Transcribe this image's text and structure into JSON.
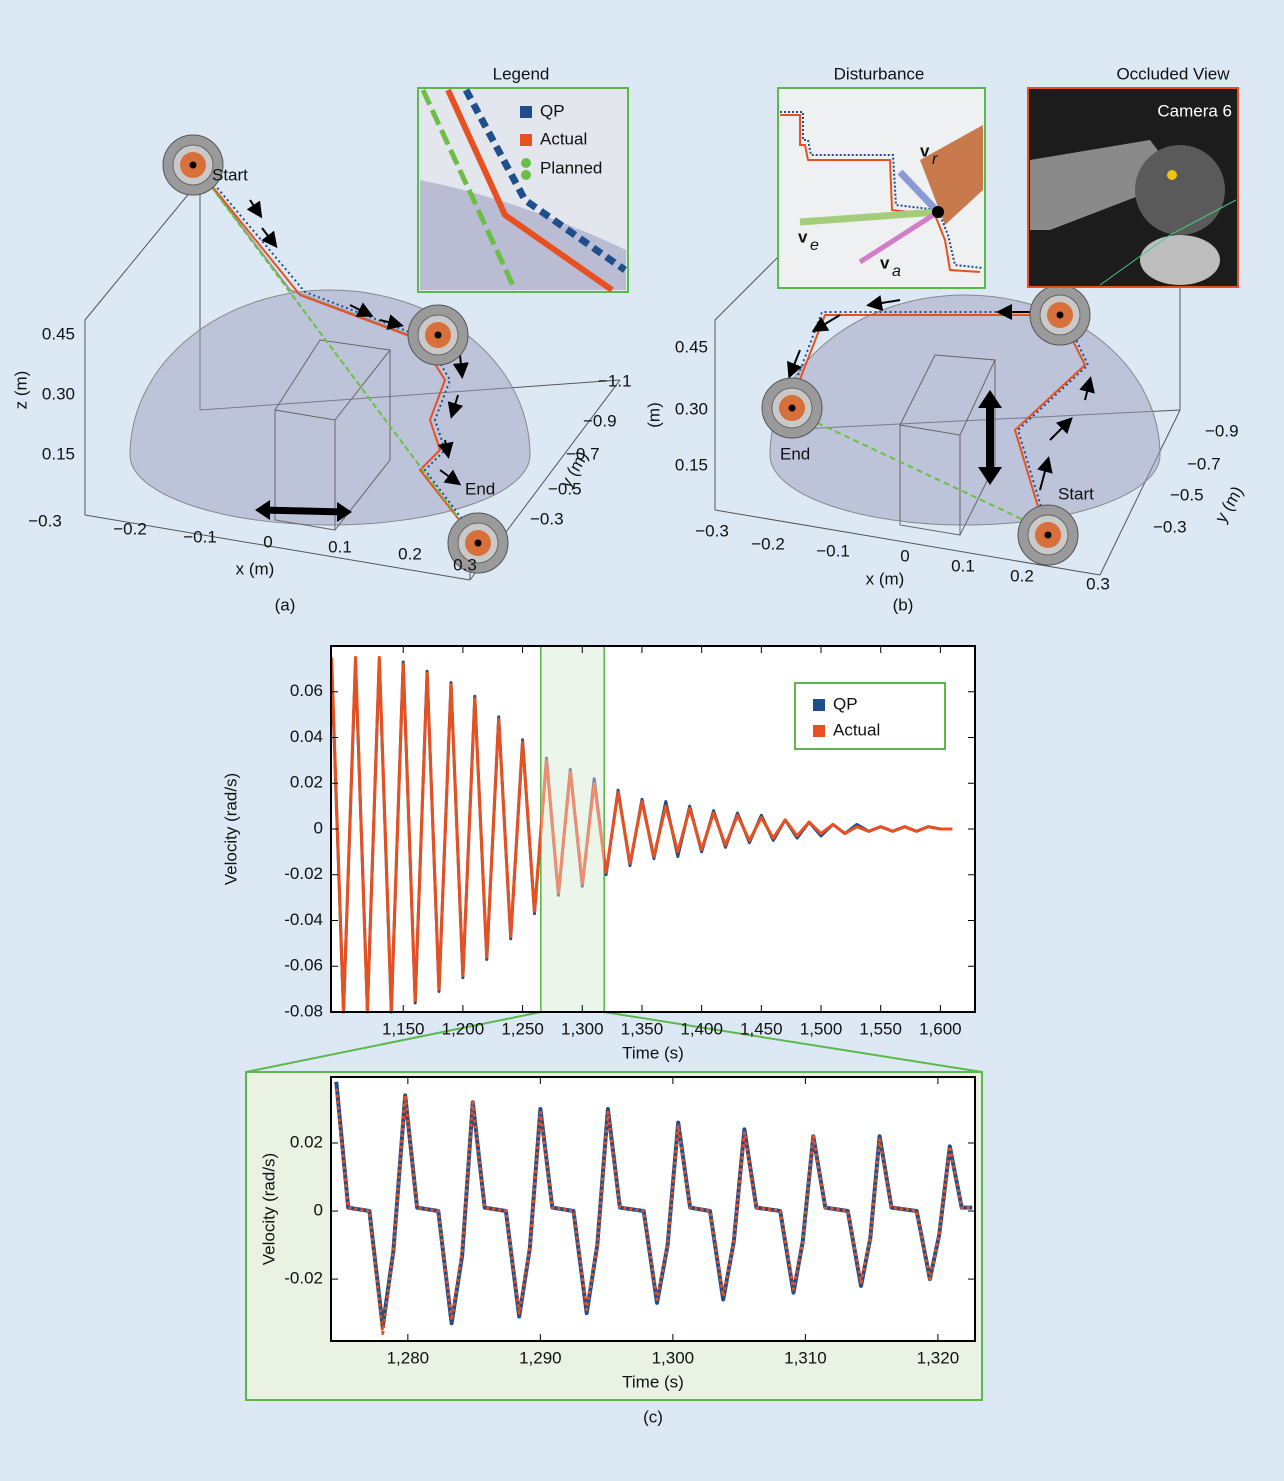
{
  "panel_a": {
    "legend_title": "Legend",
    "legend_items": [
      "QP",
      "Actual",
      "Planned"
    ],
    "start": "Start",
    "end": "End",
    "z_ticks": [
      "0.45",
      "0.30",
      "0.15"
    ],
    "z_label": "z (m)",
    "x_ticks": [
      "−0.3",
      "−0.2",
      "−0.1",
      "0",
      "0.1",
      "0.2",
      "0.3"
    ],
    "x_label": "x (m)",
    "y_ticks": [
      "−1.1",
      "−0.9",
      "−0.7",
      "−0.5",
      "−0.3"
    ],
    "y_label": "y (m)",
    "label": "(a)"
  },
  "panel_b": {
    "disturbance_title": "Disturbance",
    "vectors": [
      {
        "symbol": "v",
        "subscript": "r"
      },
      {
        "symbol": "v",
        "subscript": "e"
      },
      {
        "symbol": "v",
        "subscript": "a"
      }
    ],
    "occluded_title": "Occluded View",
    "camera": "Camera 6",
    "start": "Start",
    "end": "End",
    "z_ticks": [
      "0.45",
      "0.30",
      "0.15"
    ],
    "z_label": "(m)",
    "x_ticks": [
      "−0.3",
      "−0.2",
      "−0.1",
      "0",
      "0.1",
      "0.2",
      "0.3"
    ],
    "x_label": "x (m)",
    "y_ticks": [
      "−0.9",
      "−0.7",
      "−0.5",
      "−0.3"
    ],
    "y_label": "y (m)",
    "label": "(b)"
  },
  "panel_c": {
    "label": "(c)"
  },
  "chart_data": [
    {
      "type": "line",
      "xlabel": "Time (s)",
      "ylabel": "Velocity (rad/s)",
      "legend": "upper right",
      "x": [
        1090,
        1100,
        1110,
        1120,
        1130,
        1140,
        1150,
        1160,
        1170,
        1180,
        1190,
        1200,
        1210,
        1220,
        1230,
        1240,
        1250,
        1260,
        1270,
        1280,
        1290,
        1300,
        1310,
        1320,
        1330,
        1340,
        1350,
        1360,
        1370,
        1380,
        1390,
        1400,
        1410,
        1420,
        1430,
        1440,
        1450,
        1460,
        1470,
        1480,
        1490,
        1500,
        1510,
        1520,
        1530,
        1540,
        1550,
        1560,
        1570,
        1580,
        1590,
        1600,
        1610
      ],
      "series": [
        {
          "name": "QP",
          "color": "#1f4e8c",
          "values": [
            0.072,
            -0.08,
            0.073,
            -0.079,
            0.074,
            -0.08,
            0.073,
            -0.076,
            0.069,
            -0.071,
            0.064,
            -0.065,
            0.058,
            -0.057,
            0.049,
            -0.048,
            0.039,
            -0.037,
            0.031,
            -0.029,
            0.026,
            -0.025,
            0.022,
            -0.02,
            0.017,
            -0.016,
            0.013,
            -0.013,
            0.012,
            -0.012,
            0.01,
            -0.01,
            0.008,
            -0.008,
            0.007,
            -0.006,
            0.006,
            -0.005,
            0.004,
            -0.004,
            0.003,
            -0.003,
            0.002,
            -0.002,
            0.002,
            -0.001,
            0.001,
            -0.001,
            0.001,
            -0.001,
            0.001,
            0,
            0
          ]
        },
        {
          "name": "Actual",
          "color": "#e8501f",
          "values": [
            0.075,
            -0.08,
            0.075,
            -0.08,
            0.075,
            -0.079,
            0.072,
            -0.075,
            0.068,
            -0.07,
            0.063,
            -0.064,
            0.057,
            -0.056,
            0.048,
            -0.047,
            0.038,
            -0.036,
            0.03,
            -0.028,
            0.025,
            -0.024,
            0.02,
            -0.019,
            0.016,
            -0.015,
            0.012,
            -0.012,
            0.01,
            -0.01,
            0.009,
            -0.009,
            0.007,
            -0.007,
            0.006,
            -0.005,
            0.005,
            -0.004,
            0.004,
            -0.003,
            0.003,
            -0.002,
            0.002,
            -0.002,
            0.001,
            -0.001,
            0.001,
            -0.001,
            0.001,
            -0.001,
            0.001,
            0,
            0
          ]
        }
      ],
      "xlim": [
        1089.5,
        1629
      ],
      "ylim": [
        -0.08,
        0.08
      ],
      "xticks": [
        {
          "value": 1150,
          "label": "1,150"
        },
        {
          "value": 1200,
          "label": "1,200"
        },
        {
          "value": 1250,
          "label": "1,250"
        },
        {
          "value": 1300,
          "label": "1,300"
        },
        {
          "value": 1350,
          "label": "1,350"
        },
        {
          "value": 1400,
          "label": "1,400"
        },
        {
          "value": 1450,
          "label": "1,450"
        },
        {
          "value": 1500,
          "label": "1,500"
        },
        {
          "value": 1550,
          "label": "1,550"
        },
        {
          "value": 1600,
          "label": "1,600"
        }
      ],
      "yticks": [
        -0.08,
        -0.06,
        -0.04,
        -0.02,
        0,
        0.02,
        0.04,
        0.06
      ]
    },
    {
      "type": "line",
      "xlabel": "Time (s)",
      "ylabel": "Velocity (rad/s)",
      "x": [
        1274.6,
        1275.5,
        1277.1,
        1278.1,
        1278.9,
        1279.8,
        1280.7,
        1282.3,
        1283.3,
        1284.1,
        1284.9,
        1285.8,
        1287.4,
        1288.4,
        1289.2,
        1290.0,
        1290.9,
        1292.5,
        1293.5,
        1294.3,
        1295.1,
        1296.0,
        1297.8,
        1298.8,
        1299.6,
        1300.4,
        1301.3,
        1302.8,
        1303.8,
        1304.6,
        1305.4,
        1306.3,
        1308.1,
        1309.1,
        1309.8,
        1310.6,
        1311.5,
        1313.2,
        1314.2,
        1314.9,
        1315.6,
        1316.5,
        1318.4,
        1319.4,
        1320.1,
        1320.9,
        1321.8,
        1322.6
      ],
      "series": [
        {
          "color": "#1f4e8c",
          "values": [
            0.038,
            0.001,
            0,
            -0.034,
            -0.012,
            0.034,
            0.001,
            0,
            -0.033,
            -0.013,
            0.032,
            0.001,
            0,
            -0.031,
            -0.011,
            0.03,
            0.001,
            0,
            -0.03,
            -0.01,
            0.03,
            0.001,
            0,
            -0.027,
            -0.01,
            0.026,
            0.001,
            0,
            -0.026,
            -0.009,
            0.024,
            0.001,
            0,
            -0.024,
            -0.009,
            0.022,
            0.001,
            0,
            -0.022,
            -0.008,
            0.022,
            0.001,
            0,
            -0.02,
            -0.007,
            0.019,
            0.001,
            0.001
          ]
        },
        {
          "color": "#e8501f",
          "values": [
            0.036,
            0.001,
            0,
            -0.036,
            -0.012,
            0.034,
            0.001,
            0,
            -0.032,
            -0.012,
            0.032,
            0.001,
            0,
            -0.03,
            -0.011,
            0.029,
            0.001,
            0,
            -0.029,
            -0.01,
            0.029,
            0.001,
            0,
            -0.026,
            -0.01,
            0.025,
            0.001,
            0,
            -0.025,
            -0.009,
            0.023,
            0.001,
            0,
            -0.023,
            -0.009,
            0.022,
            0.001,
            0,
            -0.021,
            -0.008,
            0.021,
            0.001,
            0,
            -0.02,
            -0.007,
            0.019,
            0.001,
            0.001
          ]
        }
      ],
      "xlim": [
        1274.2,
        1322.8
      ],
      "ylim": [
        -0.0382,
        0.0394
      ],
      "xticks": [
        {
          "value": 1280,
          "label": "1,280"
        },
        {
          "value": 1290,
          "label": "1,290"
        },
        {
          "value": 1300,
          "label": "1,300"
        },
        {
          "value": 1310,
          "label": "1,310"
        },
        {
          "value": 1320,
          "label": "1,320"
        }
      ],
      "yticks": [
        -0.02,
        0,
        0.02
      ]
    }
  ]
}
